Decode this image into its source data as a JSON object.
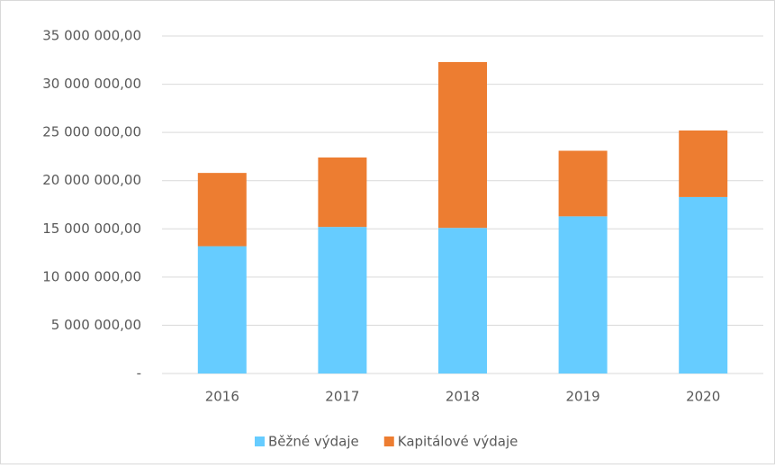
{
  "chart_data": {
    "type": "stacked_bar",
    "categories": [
      "2016",
      "2017",
      "2018",
      "2019",
      "2020"
    ],
    "series": [
      {
        "name": "Běžné výdaje",
        "color": "#66ccff",
        "values": [
          13200000,
          15200000,
          15100000,
          16300000,
          18300000
        ]
      },
      {
        "name": "Kapitálové výdaje",
        "color": "#ed7d31",
        "values": [
          7600000,
          7200000,
          17200000,
          6800000,
          6900000
        ]
      }
    ],
    "ylim": [
      0,
      35000000
    ],
    "yticks": [
      {
        "value": 0,
        "label": "-"
      },
      {
        "value": 5000000,
        "label": "5 000 000,00"
      },
      {
        "value": 10000000,
        "label": "10 000 000,00"
      },
      {
        "value": 15000000,
        "label": "15 000 000,00"
      },
      {
        "value": 20000000,
        "label": "20 000 000,00"
      },
      {
        "value": 25000000,
        "label": "25 000 000,00"
      },
      {
        "value": 30000000,
        "label": "30 000 000,00"
      },
      {
        "value": 35000000,
        "label": "35 000 000,00"
      }
    ],
    "grid": true,
    "legend": "bottom"
  }
}
